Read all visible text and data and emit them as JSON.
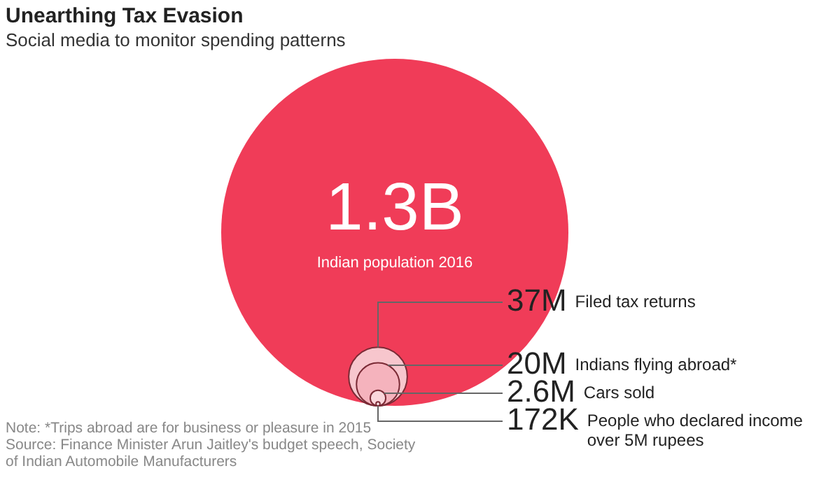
{
  "chart_data": {
    "type": "other",
    "title": "Unearthing Tax Evasion",
    "subtitle": "Social media to monitor spending patterns",
    "categories": [
      "Indian population 2016",
      "Filed tax returns",
      "Indians flying abroad*",
      "Cars sold",
      "People who declared income over 5M rupees"
    ],
    "values": [
      1300000000,
      37000000,
      20000000,
      2600000,
      172000
    ],
    "value_labels": [
      "1.3B",
      "37M",
      "20M",
      "2.6M",
      "172K"
    ],
    "colors": [
      "#f03c58",
      "#f7c6cd",
      "#f5b3bd",
      "#fad6db",
      "#fbe3e6"
    ],
    "annotations": [
      "Note: *Trips abroad are for business or pleasure in 2015",
      "Source: Finance Minister Arun Jaitley's budget speech, Society of Indian Automobile Manufacturers"
    ]
  }
}
